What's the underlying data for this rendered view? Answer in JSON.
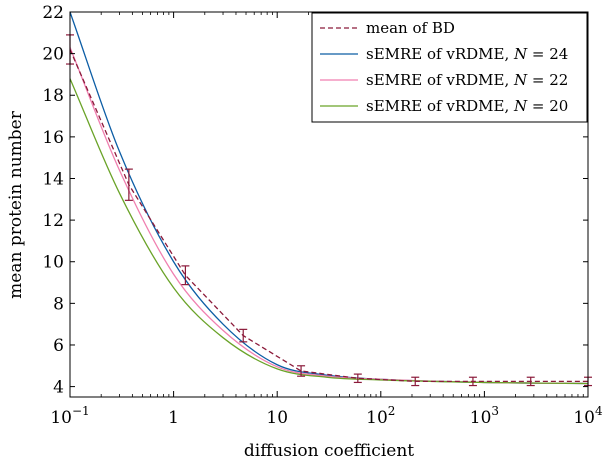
{
  "chart_data": {
    "type": "line",
    "xscale": "log",
    "xlim": [
      0.1,
      10000
    ],
    "ylim": [
      3.5,
      22
    ],
    "xlabel": "diffusion coefficient",
    "ylabel": "mean protein number",
    "x_ticks": [
      {
        "value": 0.1,
        "base": "10",
        "exp": "−1"
      },
      {
        "value": 1,
        "text": "1"
      },
      {
        "value": 10,
        "text": "10"
      },
      {
        "value": 100,
        "base": "10",
        "exp": "2"
      },
      {
        "value": 1000,
        "base": "10",
        "exp": "3"
      },
      {
        "value": 10000,
        "base": "10",
        "exp": "4"
      }
    ],
    "y_ticks": [
      4,
      6,
      8,
      10,
      12,
      14,
      16,
      18,
      20,
      22
    ],
    "grid": false,
    "legend_position": "top-right",
    "series": [
      {
        "name": "mean of BD",
        "style": "dashed",
        "color": "#8b1a3a",
        "x": [
          0.1,
          0.37,
          1.3,
          4.7,
          17,
          60,
          215,
          775,
          2800,
          10000
        ],
        "y": [
          20.2,
          13.7,
          9.35,
          6.45,
          4.75,
          4.4,
          4.25,
          4.25,
          4.25,
          4.25
        ],
        "err": [
          0.7,
          0.75,
          0.45,
          0.3,
          0.25,
          0.2,
          0.2,
          0.2,
          0.2,
          0.2
        ]
      },
      {
        "name": "sEMRE of vRDME, ",
        "N": "24",
        "style": "solid",
        "color": "#0c5da5",
        "x": [
          0.1,
          0.3,
          1,
          3,
          10,
          30,
          100,
          1000,
          10000
        ],
        "y": [
          22.0,
          15.3,
          10.0,
          7.0,
          5.05,
          4.55,
          4.35,
          4.2,
          4.15
        ]
      },
      {
        "name": "sEMRE of vRDME, ",
        "N": "22",
        "style": "solid",
        "color": "#f07fb0",
        "x": [
          0.1,
          0.3,
          1,
          3,
          10,
          30,
          100,
          1000,
          10000
        ],
        "y": [
          20.3,
          14.4,
          9.4,
          6.7,
          4.95,
          4.5,
          4.35,
          4.2,
          4.15
        ]
      },
      {
        "name": "sEMRE of vRDME, ",
        "N": "20",
        "style": "solid",
        "color": "#6aa328",
        "x": [
          0.1,
          0.3,
          1,
          3,
          10,
          30,
          100,
          1000,
          10000
        ],
        "y": [
          18.8,
          13.3,
          8.75,
          6.35,
          4.85,
          4.45,
          4.32,
          4.2,
          4.15
        ]
      }
    ]
  },
  "legend_n_symbol": "N",
  "legend_eq": " = "
}
